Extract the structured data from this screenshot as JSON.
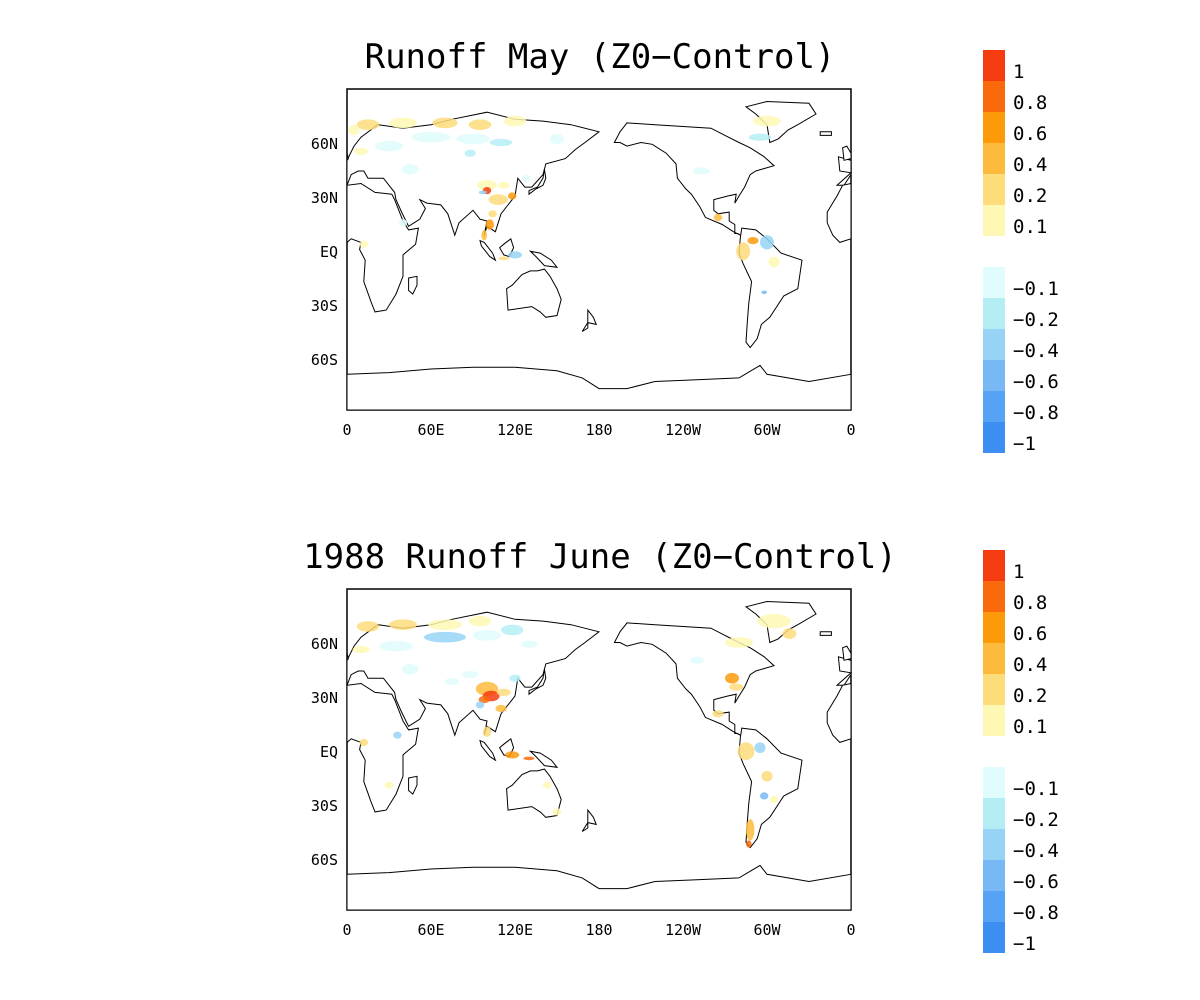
{
  "panels": [
    {
      "title": "Runoff May (Z0−Control)",
      "x_ticks": [
        "0",
        "60E",
        "120E",
        "180",
        "120W",
        "60W",
        "0"
      ],
      "y_ticks": [
        "60N",
        "30N",
        "EQ",
        "30S",
        "60S"
      ]
    },
    {
      "title": "1988 Runoff June (Z0−Control)",
      "x_ticks": [
        "0",
        "60E",
        "120E",
        "180",
        "120W",
        "60W",
        "0"
      ],
      "y_ticks": [
        "60N",
        "30N",
        "EQ",
        "30S",
        "60S"
      ]
    }
  ],
  "colorbar": {
    "labels": [
      "1",
      "0.8",
      "0.6",
      "0.4",
      "0.2",
      "0.1",
      "−0.1",
      "−0.2",
      "−0.4",
      "−0.6",
      "−0.8",
      "−1"
    ],
    "colors": [
      "#f43c10",
      "#fa6a0c",
      "#fd9a0a",
      "#fdbb3d",
      "#fddc7a",
      "#fef8b4",
      "#ffffff",
      "#e0fcfd",
      "#b4eef4",
      "#97d3f5",
      "#78b9f5",
      "#56a2f4",
      "#3d8ef2"
    ]
  },
  "map": {
    "lon_range": [
      0,
      360
    ],
    "lat_range": [
      -90,
      90
    ],
    "coast_color": "#000000"
  }
}
